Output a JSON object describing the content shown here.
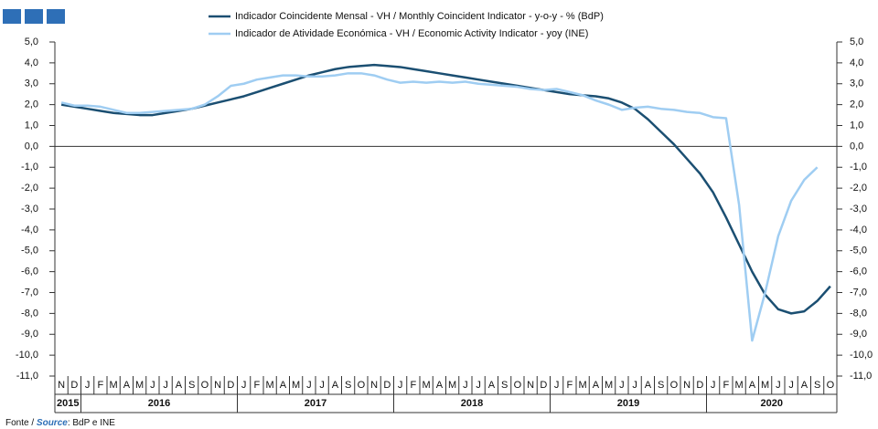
{
  "chart_data": {
    "type": "line",
    "categories": [
      "N",
      "D",
      "J",
      "F",
      "M",
      "A",
      "M",
      "J",
      "J",
      "A",
      "S",
      "O",
      "N",
      "D",
      "J",
      "F",
      "M",
      "A",
      "M",
      "J",
      "J",
      "A",
      "S",
      "O",
      "N",
      "D",
      "J",
      "F",
      "M",
      "A",
      "M",
      "J",
      "J",
      "A",
      "S",
      "O",
      "N",
      "D",
      "J",
      "F",
      "M",
      "A",
      "M",
      "J",
      "J",
      "A",
      "S",
      "O",
      "N",
      "D",
      "J",
      "F",
      "M",
      "A",
      "M",
      "J",
      "J",
      "A",
      "S",
      "O"
    ],
    "year_labels": [
      "2015",
      "2016",
      "2017",
      "2018",
      "2019",
      "2020"
    ],
    "series": [
      {
        "name": "Indicador Coincidente Mensal - VH / Monthly Coincident Indicator - y-o-y - % (BdP)",
        "color": "#1b4f72",
        "values": [
          2.0,
          1.9,
          1.8,
          1.7,
          1.6,
          1.55,
          1.5,
          1.5,
          1.6,
          1.7,
          1.8,
          1.95,
          2.1,
          2.25,
          2.4,
          2.6,
          2.8,
          3.0,
          3.2,
          3.4,
          3.55,
          3.7,
          3.8,
          3.85,
          3.9,
          3.85,
          3.8,
          3.7,
          3.6,
          3.5,
          3.4,
          3.3,
          3.2,
          3.1,
          3.0,
          2.9,
          2.8,
          2.7,
          2.6,
          2.5,
          2.45,
          2.4,
          2.3,
          2.1,
          1.8,
          1.3,
          0.7,
          0.1,
          -0.6,
          -1.3,
          -2.2,
          -3.4,
          -4.7,
          -6.0,
          -7.1,
          -7.8,
          -8.0,
          -7.9,
          -7.4,
          -6.7
        ]
      },
      {
        "name": "Indicador de Atividade Económica - VH / Economic Activity Indicator - yoy (INE)",
        "color": "#9fcdf2",
        "values": [
          2.1,
          1.95,
          1.95,
          1.9,
          1.75,
          1.6,
          1.6,
          1.65,
          1.7,
          1.75,
          1.8,
          2.0,
          2.4,
          2.9,
          3.0,
          3.2,
          3.3,
          3.4,
          3.4,
          3.35,
          3.35,
          3.4,
          3.5,
          3.5,
          3.4,
          3.2,
          3.05,
          3.1,
          3.05,
          3.1,
          3.05,
          3.1,
          3.0,
          2.95,
          2.9,
          2.85,
          2.75,
          2.7,
          2.75,
          2.6,
          2.45,
          2.2,
          2.0,
          1.75,
          1.85,
          1.9,
          1.8,
          1.75,
          1.65,
          1.6,
          1.4,
          1.35,
          -2.8,
          -9.3,
          -7.0,
          -4.3,
          -2.6,
          -1.6,
          -1.0,
          null
        ]
      }
    ],
    "ylim": [
      -11,
      5
    ],
    "yticks": [
      {
        "value": 5,
        "label": "5,0"
      },
      {
        "value": 4,
        "label": "4,0"
      },
      {
        "value": 3,
        "label": "3,0"
      },
      {
        "value": 2,
        "label": "2,0"
      },
      {
        "value": 1,
        "label": "1,0"
      },
      {
        "value": 0,
        "label": "0,0"
      },
      {
        "value": -1,
        "label": "-1,0"
      },
      {
        "value": -2,
        "label": "-2,0"
      },
      {
        "value": -3,
        "label": "-3,0"
      },
      {
        "value": -4,
        "label": "-4,0"
      },
      {
        "value": -5,
        "label": "-5,0"
      },
      {
        "value": -6,
        "label": "-6,0"
      },
      {
        "value": -7,
        "label": "-7,0"
      },
      {
        "value": -8,
        "label": "-8,0"
      },
      {
        "value": -9,
        "label": "-9,0"
      },
      {
        "value": -10,
        "label": "-10,0"
      },
      {
        "value": -11,
        "label": "-11,0"
      }
    ],
    "grid": false,
    "source_prefix": "Fonte /",
    "source_label": "Source",
    "source_text": ": BdP e INE"
  }
}
